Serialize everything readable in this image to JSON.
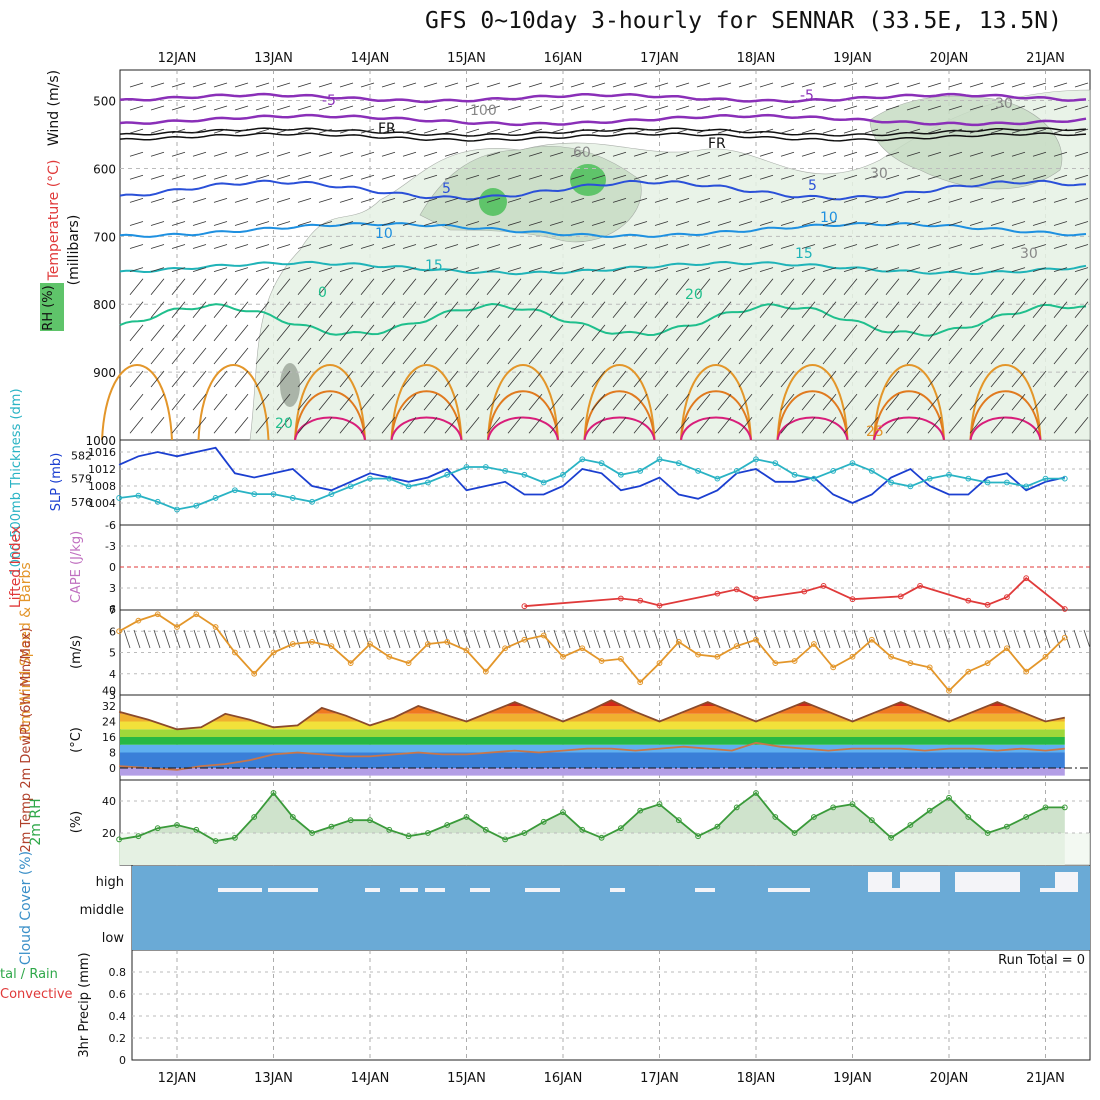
{
  "title": "GFS 0~10day 3-hourly for SENNAR (33.5E, 13.5N)",
  "date_labels": [
    "12JAN",
    "13JAN",
    "14JAN",
    "15JAN",
    "16JAN",
    "17JAN",
    "18JAN",
    "19JAN",
    "20JAN",
    "21JAN"
  ],
  "colors": {
    "rh_green": "#5fc46a",
    "rh_light": "#e6f2e4",
    "rh_mid": "#c7dcc4",
    "slp": "#1b3fd0",
    "thickness": "#29b3c4",
    "lifted": "#e03a3a",
    "wind10m": "#e3962a",
    "temp": "#8b4a2b",
    "dewpt": "#c8764a",
    "cloud": "#6aaad6",
    "purple": "#8a2fb8",
    "navy": "#2a50d8"
  },
  "panels": {
    "upper": {
      "ylabel_parts": [
        "Wind (m/s)",
        "Temperature (°C)",
        "RH (%)",
        "(millibars)"
      ],
      "ticks": [
        "500",
        "600",
        "700",
        "800",
        "900",
        "1000"
      ],
      "contour_labels": [
        "-5",
        "-5",
        "FR",
        "FR",
        "5",
        "5",
        "10",
        "10",
        "15",
        "15",
        "0",
        "20",
        "20",
        "25",
        "30",
        "30",
        "30",
        "60",
        "100"
      ]
    },
    "slp": {
      "ylabel_left": "1000-500mb Thickness (dm)",
      "ylabel_right": "SLP (mb)",
      "left_ticks": [
        "582",
        "579",
        "576"
      ],
      "right_ticks": [
        "1016",
        "1012",
        "1008",
        "1004"
      ]
    },
    "cape": {
      "ylabel": "Lifted Index",
      "ylabel2": "CAPE (J/kg)",
      "ticks": [
        "-6",
        "-3",
        "0",
        "3",
        "6"
      ]
    },
    "wind10m": {
      "ylabel": "10m Wind Speed & Barbs",
      "unit": "(m/s)",
      "ticks": [
        "7",
        "6",
        "5",
        "4",
        "3"
      ]
    },
    "temp": {
      "ylabel": "2m Temp 2m DewPt (6hr Min/Max)",
      "unit": "(°C)",
      "ticks": [
        "40",
        "32",
        "24",
        "16",
        "8",
        "0"
      ]
    },
    "rh2m": {
      "ylabel": "2m RH",
      "unit": "(%)",
      "ticks": [
        "40",
        "20"
      ]
    },
    "cloud": {
      "ylabel": "Cloud Cover (%)",
      "levels": [
        "high",
        "middle",
        "low"
      ]
    },
    "precip": {
      "ylabel": "3hr Precip (mm)",
      "legend_total": "tal / Rain",
      "legend_convective": "Convective",
      "run_total": "Run Total = 0",
      "ticks": [
        "0.8",
        "0.6",
        "0.4",
        "0.2",
        "0"
      ]
    }
  },
  "chart_data": [
    {
      "type": "line",
      "title": "SLP (mb)",
      "x_unit": "days from 12JAN 00Z",
      "x": [
        -0.6,
        -0.4,
        -0.2,
        0,
        0.2,
        0.4,
        0.6,
        0.8,
        1,
        1.2,
        1.4,
        1.6,
        1.8,
        2,
        2.2,
        2.4,
        2.6,
        2.8,
        3,
        3.2,
        3.4,
        3.6,
        3.8,
        4,
        4.2,
        4.4,
        4.6,
        4.8,
        5,
        5.2,
        5.4,
        5.6,
        5.8,
        6,
        6.2,
        6.4,
        6.6,
        6.8,
        7,
        7.2,
        7.4,
        7.6,
        7.8,
        8,
        8.2,
        8.4,
        8.6,
        8.8,
        9,
        9.2
      ],
      "series": [
        {
          "name": "SLP (mb)",
          "values": [
            1013,
            1015,
            1016,
            1015,
            1016,
            1017,
            1011,
            1010,
            1011,
            1012,
            1008,
            1007,
            1009,
            1011,
            1010,
            1009,
            1010,
            1012,
            1007,
            1008,
            1009,
            1006,
            1006,
            1008,
            1012,
            1011,
            1007,
            1008,
            1010,
            1006,
            1005,
            1007,
            1011,
            1012,
            1009,
            1009,
            1010,
            1006,
            1004,
            1006,
            1010,
            1012,
            1008,
            1006,
            1006,
            1010,
            1011,
            1007,
            1009,
            1010
          ]
        },
        {
          "name": "1000-500mb Thickness (dm)",
          "values": [
            576.5,
            576.8,
            576,
            575,
            575.5,
            576.5,
            577.5,
            577,
            577,
            576.5,
            576,
            577,
            578,
            579,
            579,
            578,
            578.5,
            579.5,
            580.5,
            580.5,
            580,
            579.5,
            578.5,
            579.5,
            581.5,
            581,
            579.5,
            580,
            581.5,
            581,
            580,
            579,
            580,
            581.5,
            581,
            579.5,
            579,
            580,
            581,
            580,
            578.5,
            578,
            579,
            579.5,
            579,
            578.5,
            578.5,
            578,
            579,
            579
          ]
        }
      ]
    },
    {
      "type": "line",
      "title": "Lifted Index",
      "x": [
        3.6,
        4.6,
        4.8,
        5,
        5.6,
        5.8,
        6,
        6.5,
        6.7,
        7,
        7.5,
        7.7,
        8.2,
        8.4,
        8.6,
        8.8,
        9.2
      ],
      "series": [
        {
          "name": "Lifted Index",
          "values": [
            5.6,
            4.5,
            4.8,
            5.5,
            3.8,
            3.2,
            4.5,
            3.5,
            2.7,
            4.6,
            4.2,
            2.7,
            4.8,
            5.4,
            4.3,
            1.6,
            6
          ]
        }
      ],
      "ylim": [
        6,
        -6
      ]
    },
    {
      "type": "line",
      "title": "10m Wind Speed",
      "x": [
        -0.6,
        -0.4,
        -0.2,
        0,
        0.2,
        0.4,
        0.6,
        0.8,
        1,
        1.2,
        1.4,
        1.6,
        1.8,
        2,
        2.2,
        2.4,
        2.6,
        2.8,
        3,
        3.2,
        3.4,
        3.6,
        3.8,
        4,
        4.2,
        4.4,
        4.6,
        4.8,
        5,
        5.2,
        5.4,
        5.6,
        5.8,
        6,
        6.2,
        6.4,
        6.6,
        6.8,
        7,
        7.2,
        7.4,
        7.6,
        7.8,
        8,
        8.2,
        8.4,
        8.6,
        8.8,
        9,
        9.2
      ],
      "series": [
        {
          "name": "10m Wind Speed",
          "values": [
            6,
            6.5,
            6.8,
            6.2,
            6.8,
            6.2,
            5,
            4,
            5,
            5.4,
            5.5,
            5.3,
            4.5,
            5.4,
            4.8,
            4.5,
            5.4,
            5.5,
            5.1,
            4.1,
            5.2,
            5.6,
            5.8,
            4.8,
            5.2,
            4.6,
            4.7,
            3.6,
            4.5,
            5.5,
            4.9,
            4.8,
            5.3,
            5.6,
            4.5,
            4.6,
            5.4,
            4.3,
            4.8,
            5.6,
            4.8,
            4.5,
            4.3,
            3.2,
            4.1,
            4.5,
            5.2,
            4.1,
            4.8,
            5.7
          ]
        }
      ],
      "ylim": [
        3,
        7
      ]
    },
    {
      "type": "area",
      "title": "2m Temp",
      "x": [
        -0.6,
        -0.3,
        0,
        0.25,
        0.5,
        0.75,
        1,
        1.25,
        1.5,
        1.75,
        2,
        2.25,
        2.5,
        2.75,
        3,
        3.25,
        3.5,
        3.75,
        4,
        4.25,
        4.5,
        4.75,
        5,
        5.25,
        5.5,
        5.75,
        6,
        6.25,
        6.5,
        6.75,
        7,
        7.25,
        7.5,
        7.75,
        8,
        8.25,
        8.5,
        8.75,
        9,
        9.2
      ],
      "series": [
        {
          "name": "2m Temp",
          "values": [
            29,
            25,
            20,
            21,
            28,
            25,
            21,
            22,
            31,
            27,
            22,
            26,
            32,
            28,
            24,
            29,
            34,
            29,
            24,
            29,
            35,
            29,
            24,
            29,
            34,
            29,
            24,
            29,
            34,
            29,
            24,
            29,
            34,
            29,
            24,
            29,
            34,
            29,
            24,
            26
          ]
        },
        {
          "name": "2m DewPt",
          "values": [
            1,
            0,
            -1,
            1,
            2,
            4,
            7,
            8,
            7,
            6,
            6,
            7,
            8,
            7,
            7,
            8,
            9,
            8,
            9,
            10,
            10,
            9,
            10,
            11,
            10,
            9,
            13,
            11,
            10,
            9,
            10,
            10,
            10,
            9,
            10,
            10,
            9,
            10,
            9,
            10
          ]
        }
      ],
      "ylim": [
        -4,
        40
      ]
    },
    {
      "type": "area",
      "title": "2m RH",
      "x": [
        -0.6,
        -0.4,
        -0.2,
        0,
        0.2,
        0.4,
        0.6,
        0.8,
        1,
        1.2,
        1.4,
        1.6,
        1.8,
        2,
        2.2,
        2.4,
        2.6,
        2.8,
        3,
        3.2,
        3.4,
        3.6,
        3.8,
        4,
        4.2,
        4.4,
        4.6,
        4.8,
        5,
        5.2,
        5.4,
        5.6,
        5.8,
        6,
        6.2,
        6.4,
        6.6,
        6.8,
        7,
        7.2,
        7.4,
        7.6,
        7.8,
        8,
        8.2,
        8.4,
        8.6,
        8.8,
        9,
        9.2
      ],
      "series": [
        {
          "name": "2m RH",
          "values": [
            16,
            18,
            23,
            25,
            22,
            15,
            17,
            30,
            45,
            30,
            20,
            24,
            28,
            28,
            22,
            18,
            20,
            25,
            30,
            22,
            16,
            20,
            27,
            33,
            22,
            17,
            23,
            34,
            38,
            28,
            18,
            24,
            36,
            45,
            30,
            20,
            30,
            36,
            38,
            28,
            17,
            25,
            34,
            42,
            30,
            20,
            24,
            30,
            36,
            36
          ]
        }
      ],
      "ylim": [
        0,
        50
      ]
    }
  ]
}
